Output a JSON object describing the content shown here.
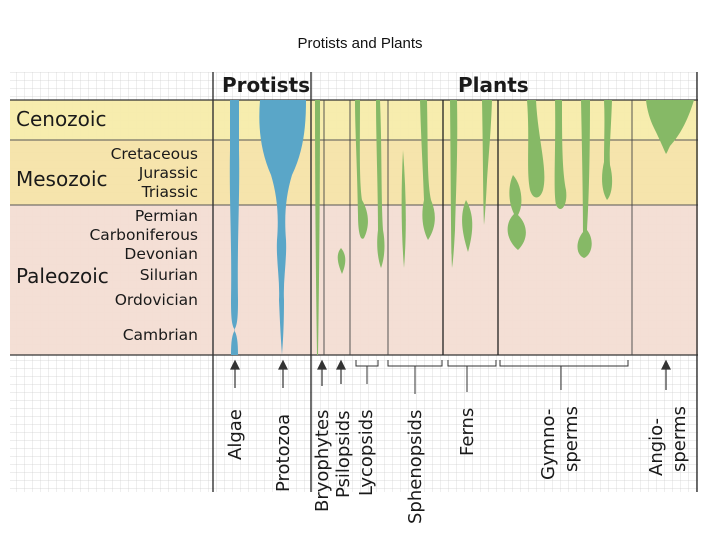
{
  "title": "Protists and Plants",
  "group_headers": [
    "Protists",
    "Plants"
  ],
  "eras": [
    {
      "name": "Cenozoic",
      "periods": []
    },
    {
      "name": "Mesozoic",
      "periods": [
        "Cretaceous",
        "Jurassic",
        "Triassic"
      ]
    },
    {
      "name": "Paleozoic",
      "periods": [
        "Permian",
        "Carboniferous",
        "Devonian",
        "Silurian",
        "Ordovician",
        "Cambrian"
      ]
    }
  ],
  "taxa": [
    {
      "lines": [
        "Algae"
      ]
    },
    {
      "lines": [
        "Protozoa"
      ]
    },
    {
      "lines": [
        "Bryophytes"
      ]
    },
    {
      "lines": [
        "Psilopsids"
      ]
    },
    {
      "lines": [
        "Lycopsids"
      ]
    },
    {
      "lines": [
        "Sphenopsids"
      ]
    },
    {
      "lines": [
        "Ferns"
      ]
    },
    {
      "lines": [
        "Gymno-",
        "sperms"
      ]
    },
    {
      "lines": [
        "Angio-",
        "sperms"
      ]
    }
  ],
  "colors": {
    "cenozoic": "#f7ecaa",
    "mesozoic": "#f5e3a8",
    "paleozoic": "#f3ddd3",
    "protist": "#5aa6c8",
    "plant": "#86b966",
    "grid": "#c9c9c9",
    "line": "#333333"
  }
}
